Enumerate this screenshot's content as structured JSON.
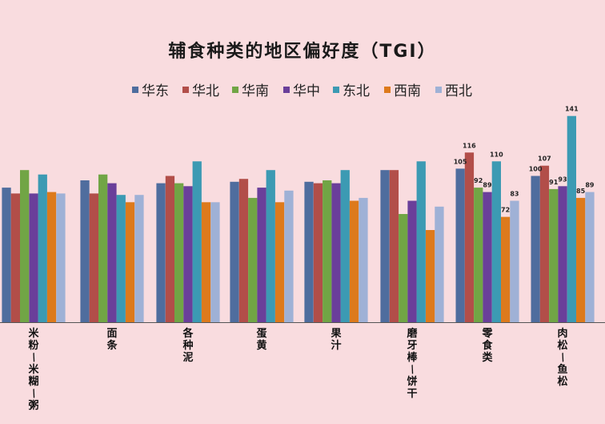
{
  "title": "辅食种类的地区偏好度（TGI）",
  "chart_data": {
    "type": "bar",
    "title": "辅食种类的地区偏好度（TGI）",
    "categories": [
      "米粉/米糊/粥",
      "面条",
      "各种泥",
      "蛋黄",
      "果汁",
      "磨牙棒/饼干",
      "零食类",
      "肉松/鱼松"
    ],
    "ylim": [
      0,
      160
    ],
    "grid": false,
    "legend_position": "top",
    "series": [
      {
        "name": "华东",
        "color": "#4f6d9e",
        "values": [
          92,
          97,
          95,
          96,
          96,
          104,
          105,
          100
        ]
      },
      {
        "name": "华北",
        "color": "#b24e49",
        "values": [
          88,
          88,
          100,
          98,
          95,
          104,
          116,
          107
        ]
      },
      {
        "name": "华南",
        "color": "#71a545",
        "values": [
          104,
          101,
          95,
          85,
          97,
          74,
          92,
          91
        ]
      },
      {
        "name": "华中",
        "color": "#6a3f9a",
        "values": [
          88,
          95,
          93,
          92,
          95,
          83,
          89,
          93
        ]
      },
      {
        "name": "东北",
        "color": "#3c9ab3",
        "values": [
          101,
          87,
          110,
          104,
          104,
          110,
          110,
          141
        ]
      },
      {
        "name": "西南",
        "color": "#dd7a1c",
        "values": [
          89,
          82,
          82,
          82,
          83,
          63,
          72,
          85
        ]
      },
      {
        "name": "西北",
        "color": "#9fb1d6",
        "values": [
          88,
          87,
          82,
          90,
          85,
          79,
          83,
          89
        ]
      }
    ],
    "data_labels": [
      {
        "category": "零食类",
        "values": [
          "105",
          "116",
          "92",
          "89",
          "110",
          "72",
          "83"
        ]
      },
      {
        "category": "肉松/鱼松",
        "values": [
          "100",
          "107",
          "91",
          "93",
          "141",
          "85",
          "89"
        ]
      }
    ]
  }
}
